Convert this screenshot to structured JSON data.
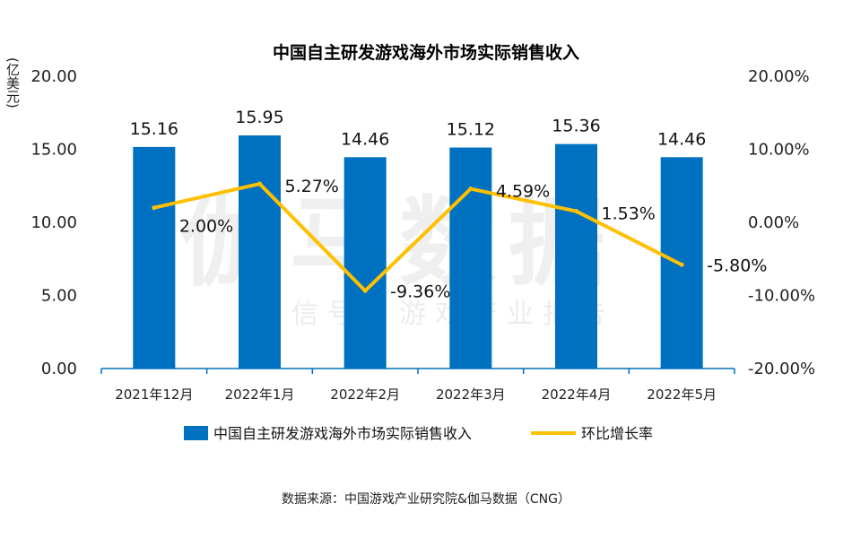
{
  "chart_data": {
    "type": "bar",
    "title": "中国自主研发游戏海外市场实际销售收入",
    "ylabel": "亿美元",
    "categories": [
      "2021年12月",
      "2022年1月",
      "2022年2月",
      "2022年3月",
      "2022年4月",
      "2022年5月"
    ],
    "series": [
      {
        "name": "中国自主研发游戏海外市场实际销售收入",
        "type": "bar",
        "axis": "left",
        "color": "#0070C0",
        "values": [
          15.16,
          15.95,
          14.46,
          15.12,
          15.36,
          14.46
        ],
        "labels": [
          "15.16",
          "15.95",
          "14.46",
          "15.12",
          "15.36",
          "14.46"
        ]
      },
      {
        "name": "环比增长率",
        "type": "line",
        "axis": "right",
        "color": "#FFC000",
        "values": [
          2.0,
          5.27,
          -9.36,
          4.59,
          1.53,
          -5.8
        ],
        "labels": [
          "2.00%",
          "5.27%",
          "-9.36%",
          "4.59%",
          "1.53%",
          "-5.80%"
        ]
      }
    ],
    "ylim": [
      0,
      20
    ],
    "y_ticks": [
      "0.00",
      "5.00",
      "10.00",
      "15.00",
      "20.00"
    ],
    "y2lim": [
      -20,
      20
    ],
    "y2_ticks": [
      "-20.00%",
      "-10.00%",
      "0.00%",
      "10.00%",
      "20.00%"
    ],
    "legend_position": "bottom"
  },
  "watermark": {
    "main": "伽马数据",
    "sub": "微信号：游戏产业报告"
  },
  "source": "数据来源：中国游戏产业研究院&伽马数据（CNG）"
}
